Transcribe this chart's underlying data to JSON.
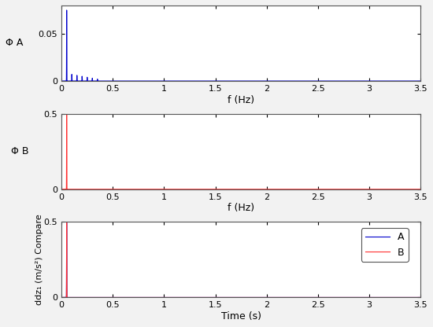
{
  "xlim": [
    0,
    3.5
  ],
  "xticks": [
    0,
    0.5,
    1,
    1.5,
    2,
    2.5,
    3,
    3.5
  ],
  "plot1_ylim": [
    0,
    0.08
  ],
  "plot1_yticks": [
    0,
    0.05
  ],
  "plot1_ylabel": "Φ A",
  "plot1_xlabel": "f (Hz)",
  "plot2_ylim": [
    0,
    0.5
  ],
  "plot2_yticks": [
    0,
    0.5
  ],
  "plot2_ylabel": "Φ B",
  "plot2_xlabel": "f (Hz)",
  "plot3_ylim": [
    0,
    0.5
  ],
  "plot3_yticks": [
    0,
    0.5
  ],
  "plot3_ylabel": "ddz₁ (m/s²) Compare",
  "plot3_xlabel": "Time (s)",
  "color_A": "#0000cc",
  "color_B": "#ff3030",
  "legend_labels": [
    "B",
    "A"
  ],
  "bg_color": "#f2f2f2",
  "axes_bg": "#ffffff",
  "spine_color": "#555555"
}
